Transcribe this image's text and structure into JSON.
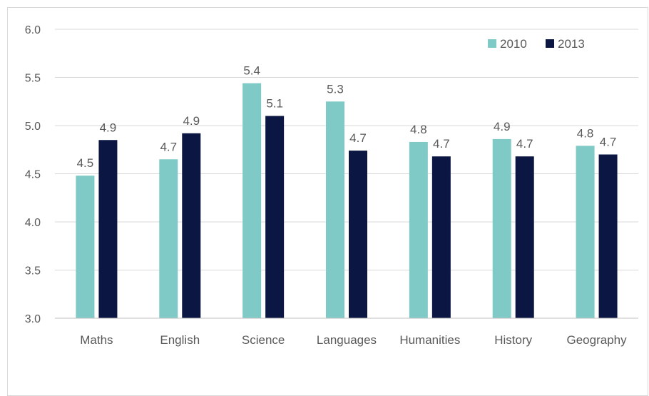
{
  "chart_data": {
    "type": "bar",
    "categories": [
      "Maths",
      "English",
      "Science",
      "Languages",
      "Humanities",
      "History",
      "Geography"
    ],
    "series": [
      {
        "name": "2010",
        "color": "#7fcac6",
        "values": [
          4.48,
          4.65,
          5.44,
          5.25,
          4.83,
          4.86,
          4.79
        ],
        "labels": [
          "4.5",
          "4.7",
          "5.4",
          "5.3",
          "4.8",
          "4.9",
          "4.8"
        ]
      },
      {
        "name": "2013",
        "color": "#0b1742",
        "values": [
          4.85,
          4.92,
          5.1,
          4.74,
          4.68,
          4.68,
          4.7
        ],
        "labels": [
          "4.9",
          "4.9",
          "5.1",
          "4.7",
          "4.7",
          "4.7",
          "4.7"
        ]
      }
    ],
    "ylim": [
      3.0,
      6.0
    ],
    "yticks": [
      "3.0",
      "3.5",
      "4.0",
      "4.5",
      "5.0",
      "5.5",
      "6.0"
    ],
    "grid": true,
    "legend_position": "top-right",
    "title": "",
    "xlabel": "",
    "ylabel": ""
  }
}
